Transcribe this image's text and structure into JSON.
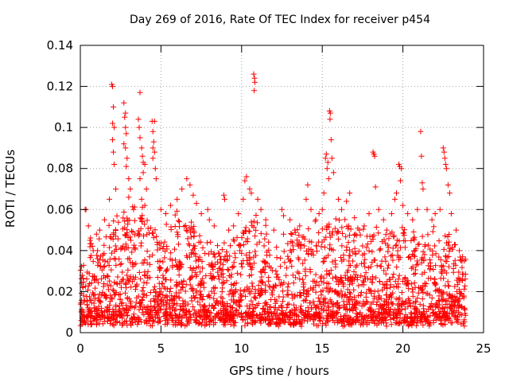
{
  "chart_data": {
    "type": "scatter",
    "title": "Day 269 of 2016, Rate Of TEC Index for receiver p454",
    "xlabel": "GPS time / hours",
    "ylabel": "ROTI / TECUs",
    "xlim": [
      0,
      25
    ],
    "ylim": [
      0,
      0.14
    ],
    "xticks": [
      0,
      5,
      10,
      15,
      20,
      25
    ],
    "xtick_labels": [
      "0",
      "5",
      "10",
      "15",
      "20",
      "25"
    ],
    "yticks": [
      0,
      0.02,
      0.04,
      0.06,
      0.08,
      0.1,
      0.12,
      0.14
    ],
    "ytick_labels": [
      "0",
      "0.02",
      "0.04",
      "0.06",
      "0.08",
      "0.1",
      "0.12",
      "0.14"
    ],
    "grid": true,
    "marker": "plus",
    "color": "#ff0000",
    "series": [
      {
        "name": "ROTI",
        "points": [
          [
            0.3,
            0.06
          ],
          [
            0.35,
            0.06
          ],
          [
            0.5,
            0.052
          ],
          [
            0.6,
            0.045
          ],
          [
            0.8,
            0.04
          ],
          [
            1.0,
            0.048
          ],
          [
            1.2,
            0.05
          ],
          [
            1.5,
            0.055
          ],
          [
            1.8,
            0.065
          ],
          [
            1.95,
            0.121
          ],
          [
            2.0,
            0.12
          ],
          [
            2.05,
            0.11
          ],
          [
            2.0,
            0.102
          ],
          [
            2.1,
            0.1
          ],
          [
            2.0,
            0.094
          ],
          [
            2.05,
            0.088
          ],
          [
            2.1,
            0.082
          ],
          [
            2.2,
            0.07
          ],
          [
            2.7,
            0.112
          ],
          [
            2.8,
            0.107
          ],
          [
            2.75,
            0.105
          ],
          [
            2.8,
            0.1
          ],
          [
            2.85,
            0.097
          ],
          [
            2.7,
            0.092
          ],
          [
            2.8,
            0.09
          ],
          [
            2.9,
            0.085
          ],
          [
            2.85,
            0.081
          ],
          [
            3.0,
            0.075
          ],
          [
            3.1,
            0.07
          ],
          [
            3.0,
            0.066
          ],
          [
            3.3,
            0.06
          ],
          [
            3.7,
            0.117
          ],
          [
            3.6,
            0.104
          ],
          [
            3.65,
            0.1
          ],
          [
            3.7,
            0.095
          ],
          [
            3.8,
            0.09
          ],
          [
            3.85,
            0.086
          ],
          [
            3.9,
            0.083
          ],
          [
            4.0,
            0.082
          ],
          [
            3.9,
            0.078
          ],
          [
            3.7,
            0.075
          ],
          [
            4.1,
            0.07
          ],
          [
            3.8,
            0.065
          ],
          [
            4.0,
            0.062
          ],
          [
            4.45,
            0.103
          ],
          [
            4.6,
            0.103
          ],
          [
            4.5,
            0.098
          ],
          [
            4.55,
            0.093
          ],
          [
            4.5,
            0.09
          ],
          [
            4.6,
            0.088
          ],
          [
            4.5,
            0.085
          ],
          [
            4.65,
            0.08
          ],
          [
            4.7,
            0.075
          ],
          [
            5.0,
            0.06
          ],
          [
            5.3,
            0.058
          ],
          [
            5.6,
            0.062
          ],
          [
            6.0,
            0.065
          ],
          [
            6.3,
            0.07
          ],
          [
            6.6,
            0.075
          ],
          [
            6.8,
            0.072
          ],
          [
            7.0,
            0.067
          ],
          [
            7.2,
            0.063
          ],
          [
            7.5,
            0.058
          ],
          [
            7.9,
            0.06
          ],
          [
            8.0,
            0.055
          ],
          [
            8.3,
            0.052
          ],
          [
            8.9,
            0.067
          ],
          [
            8.95,
            0.065
          ],
          [
            9.2,
            0.05
          ],
          [
            9.5,
            0.052
          ],
          [
            9.8,
            0.058
          ],
          [
            10.1,
            0.065
          ],
          [
            10.3,
            0.076
          ],
          [
            10.2,
            0.074
          ],
          [
            10.5,
            0.07
          ],
          [
            10.6,
            0.068
          ],
          [
            10.75,
            0.126
          ],
          [
            10.8,
            0.124
          ],
          [
            10.82,
            0.122
          ],
          [
            10.78,
            0.118
          ],
          [
            11.0,
            0.065
          ],
          [
            11.2,
            0.06
          ],
          [
            11.5,
            0.055
          ],
          [
            12.0,
            0.05
          ],
          [
            12.5,
            0.06
          ],
          [
            12.6,
            0.057
          ],
          [
            13.0,
            0.055
          ],
          [
            13.3,
            0.05
          ],
          [
            13.6,
            0.052
          ],
          [
            14.0,
            0.065
          ],
          [
            14.1,
            0.072
          ],
          [
            14.3,
            0.06
          ],
          [
            14.6,
            0.055
          ],
          [
            14.8,
            0.058
          ],
          [
            15.0,
            0.06
          ],
          [
            15.1,
            0.068
          ],
          [
            15.2,
            0.085
          ],
          [
            15.25,
            0.087
          ],
          [
            15.3,
            0.08
          ],
          [
            15.35,
            0.083
          ],
          [
            15.4,
            0.075
          ],
          [
            15.45,
            0.108
          ],
          [
            15.5,
            0.107
          ],
          [
            15.48,
            0.104
          ],
          [
            15.55,
            0.094
          ],
          [
            15.6,
            0.085
          ],
          [
            15.7,
            0.078
          ],
          [
            16.0,
            0.065
          ],
          [
            16.2,
            0.06
          ],
          [
            16.5,
            0.064
          ],
          [
            16.7,
            0.068
          ],
          [
            17.0,
            0.056
          ],
          [
            17.3,
            0.05
          ],
          [
            17.6,
            0.052
          ],
          [
            17.9,
            0.058
          ],
          [
            18.15,
            0.088
          ],
          [
            18.2,
            0.087
          ],
          [
            18.25,
            0.086
          ],
          [
            18.3,
            0.071
          ],
          [
            18.5,
            0.06
          ],
          [
            18.8,
            0.055
          ],
          [
            19.0,
            0.05
          ],
          [
            19.3,
            0.058
          ],
          [
            19.5,
            0.065
          ],
          [
            19.6,
            0.068
          ],
          [
            19.75,
            0.082
          ],
          [
            19.8,
            0.081
          ],
          [
            19.9,
            0.08
          ],
          [
            19.85,
            0.074
          ],
          [
            20.0,
            0.062
          ],
          [
            20.3,
            0.058
          ],
          [
            20.6,
            0.055
          ],
          [
            20.9,
            0.06
          ],
          [
            21.1,
            0.098
          ],
          [
            21.15,
            0.086
          ],
          [
            21.2,
            0.073
          ],
          [
            21.25,
            0.07
          ],
          [
            21.5,
            0.06
          ],
          [
            21.8,
            0.055
          ],
          [
            22.0,
            0.058
          ],
          [
            22.3,
            0.06
          ],
          [
            22.5,
            0.09
          ],
          [
            22.55,
            0.088
          ],
          [
            22.6,
            0.085
          ],
          [
            22.65,
            0.082
          ],
          [
            22.7,
            0.08
          ],
          [
            22.8,
            0.072
          ],
          [
            22.9,
            0.068
          ],
          [
            23.0,
            0.058
          ],
          [
            23.3,
            0.05
          ],
          [
            23.5,
            0.04
          ],
          [
            23.7,
            0.037
          ],
          [
            23.8,
            0.035
          ]
        ],
        "dense_band": {
          "x_range": [
            0,
            23.9
          ],
          "y_typical_range": [
            0.003,
            0.05
          ],
          "y_upper_envelope": [
            [
              0,
              0.03
            ],
            [
              0.5,
              0.045
            ],
            [
              1.0,
              0.04
            ],
            [
              2.0,
              0.055
            ],
            [
              3.0,
              0.06
            ],
            [
              4.0,
              0.058
            ],
            [
              5.0,
              0.045
            ],
            [
              6.0,
              0.055
            ],
            [
              7.0,
              0.05
            ],
            [
              8.0,
              0.045
            ],
            [
              9.0,
              0.04
            ],
            [
              10.0,
              0.05
            ],
            [
              11.0,
              0.055
            ],
            [
              12.0,
              0.04
            ],
            [
              13.0,
              0.045
            ],
            [
              14.0,
              0.05
            ],
            [
              15.0,
              0.05
            ],
            [
              16.0,
              0.055
            ],
            [
              17.0,
              0.048
            ],
            [
              18.0,
              0.05
            ],
            [
              19.0,
              0.045
            ],
            [
              20.0,
              0.048
            ],
            [
              21.0,
              0.045
            ],
            [
              22.0,
              0.05
            ],
            [
              23.0,
              0.045
            ],
            [
              23.9,
              0.035
            ]
          ]
        }
      }
    ]
  }
}
